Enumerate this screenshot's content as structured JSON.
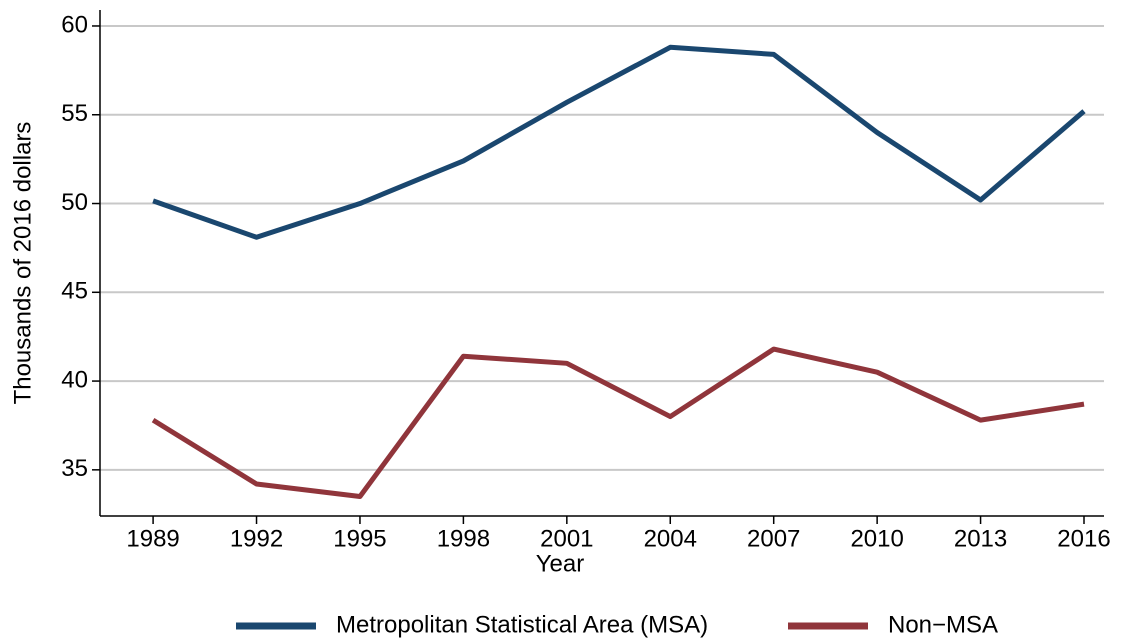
{
  "chart_data": {
    "type": "line",
    "x": [
      1989,
      1992,
      1995,
      1998,
      2001,
      2004,
      2007,
      2010,
      2013,
      2016
    ],
    "series": [
      {
        "name": "Metropolitan Statistical Area (MSA)",
        "color": "#1a476f",
        "values": [
          50.15,
          48.1,
          50.0,
          52.4,
          55.7,
          58.8,
          58.4,
          54.0,
          50.2,
          55.2
        ]
      },
      {
        "name": "Non−MSA",
        "color": "#90353b",
        "values": [
          37.8,
          34.2,
          33.5,
          41.4,
          41.0,
          38.0,
          41.8,
          40.5,
          37.8,
          38.7
        ]
      }
    ],
    "xlabel": "Year",
    "ylabel": "Thousands of 2016 dollars",
    "xlim": [
      1987.46,
      2016.58
    ],
    "ylim": [
      32.4,
      60.9
    ],
    "xticks": [
      1989,
      1992,
      1995,
      1998,
      2001,
      2004,
      2007,
      2010,
      2013,
      2016
    ],
    "yticks": [
      35,
      40,
      45,
      50,
      55,
      60
    ],
    "grid": true,
    "legend": "bottom"
  }
}
